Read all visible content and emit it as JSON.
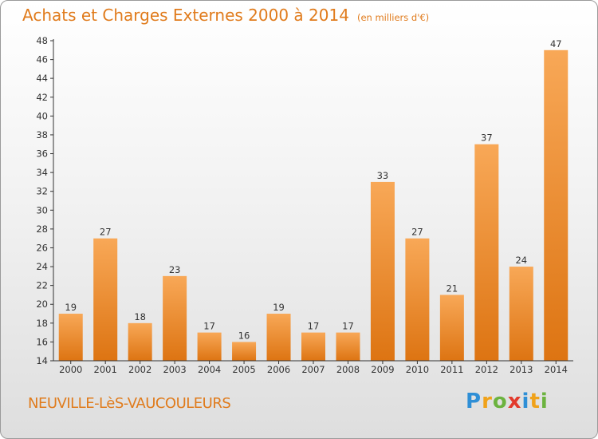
{
  "header": {
    "title": "Achats et Charges Externes 2000 à 2014",
    "unit": "(en milliers d'€)"
  },
  "footer": {
    "commune": "NEUVILLE-LèS-VAUCOULEURS"
  },
  "logo": {
    "text": "Proxiti",
    "letters": [
      {
        "ch": "P",
        "color": "#2f8fd6"
      },
      {
        "ch": "r",
        "color": "#f0a21a"
      },
      {
        "ch": "o",
        "color": "#6cb33f"
      },
      {
        "ch": "x",
        "color": "#e23b2d"
      },
      {
        "ch": "i",
        "color": "#2f8fd6"
      },
      {
        "ch": "t",
        "color": "#f0a21a"
      },
      {
        "ch": "i",
        "color": "#6cb33f"
      }
    ]
  },
  "colors": {
    "accent": "#e07b1c",
    "bar_light": "#f8a857",
    "bar_dark": "#dd7412",
    "axis": "#333333"
  },
  "chart_data": {
    "type": "bar",
    "title": "Achats et Charges Externes 2000 à 2014",
    "subtitle": "(en milliers d'€)",
    "categories": [
      "2000",
      "2001",
      "2002",
      "2003",
      "2004",
      "2005",
      "2006",
      "2007",
      "2008",
      "2009",
      "2010",
      "2011",
      "2012",
      "2013",
      "2014"
    ],
    "values": [
      19,
      27,
      18,
      23,
      17,
      16,
      19,
      17,
      17,
      33,
      27,
      21,
      37,
      24,
      47
    ],
    "ylim": [
      14,
      48
    ],
    "yticks": [
      14,
      16,
      18,
      20,
      22,
      24,
      26,
      28,
      30,
      32,
      34,
      36,
      38,
      40,
      42,
      44,
      46,
      48
    ],
    "grid": false,
    "legend": "none",
    "data_labels": true
  }
}
